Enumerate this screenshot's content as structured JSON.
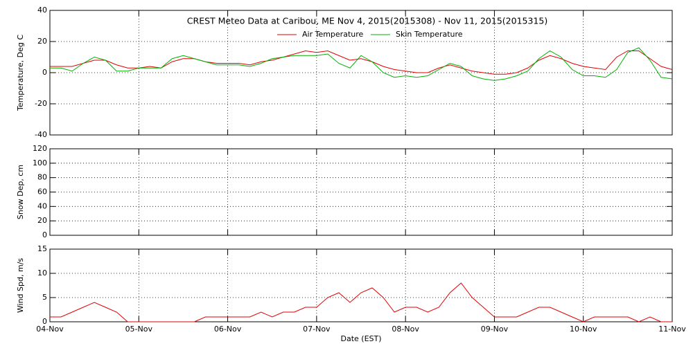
{
  "chart_data": [
    {
      "type": "line",
      "title": "CREST Meteo Data at Caribou, ME   Nov  4, 2015(2015308) - Nov 11, 2015(2015315)",
      "ylabel": "Temperature, Deg C",
      "xlim": [
        0,
        7
      ],
      "xticks": [
        0,
        1,
        2,
        3,
        4,
        5,
        6,
        7
      ],
      "ylim": [
        -40,
        40
      ],
      "yticks": [
        -40,
        -20,
        0,
        20,
        40
      ],
      "grid": true,
      "x": [
        0,
        0.125,
        0.25,
        0.375,
        0.5,
        0.625,
        0.75,
        0.875,
        1,
        1.125,
        1.25,
        1.375,
        1.5,
        1.625,
        1.75,
        1.875,
        2,
        2.125,
        2.25,
        2.375,
        2.5,
        2.625,
        2.75,
        2.875,
        3,
        3.125,
        3.25,
        3.375,
        3.5,
        3.625,
        3.75,
        3.875,
        4,
        4.125,
        4.25,
        4.375,
        4.5,
        4.625,
        4.75,
        4.875,
        5,
        5.125,
        5.25,
        5.375,
        5.5,
        5.625,
        5.75,
        5.875,
        6,
        6.125,
        6.25,
        6.375,
        6.5,
        6.625,
        6.75,
        6.875,
        7
      ],
      "series": [
        {
          "name": "Air Temperature",
          "color": "#e00000",
          "values": [
            4,
            4,
            4,
            6,
            8,
            8,
            5,
            3,
            3,
            4,
            3,
            7,
            9,
            9,
            7,
            6,
            6,
            6,
            5,
            7,
            8,
            10,
            12,
            14,
            13,
            14,
            11,
            8,
            9,
            7,
            4,
            2,
            1,
            0,
            0,
            3,
            5,
            3,
            1,
            0,
            -1,
            -1,
            0,
            3,
            8,
            11,
            9,
            6,
            4,
            3,
            2,
            10,
            14,
            14,
            9,
            4,
            2
          ]
        },
        {
          "name": "Skin Temperature",
          "color": "#00b000",
          "values": [
            3,
            3,
            1,
            6,
            10,
            8,
            1,
            1,
            3,
            3,
            3,
            9,
            11,
            9,
            7,
            5,
            5,
            5,
            4,
            6,
            9,
            10,
            11,
            11,
            11,
            12,
            6,
            3,
            11,
            7,
            0,
            -3,
            -2,
            -3,
            -2,
            2,
            6,
            4,
            -2,
            -4,
            -5,
            -4,
            -2,
            1,
            9,
            14,
            10,
            2,
            -2,
            -2,
            -3,
            2,
            13,
            16,
            8,
            -3,
            -4
          ]
        }
      ]
    },
    {
      "type": "line",
      "ylabel": "Snow Dep, cm",
      "xlim": [
        0,
        7
      ],
      "xticks": [
        0,
        1,
        2,
        3,
        4,
        5,
        6,
        7
      ],
      "ylim": [
        0,
        120
      ],
      "yticks": [
        0,
        20,
        40,
        60,
        80,
        100,
        120
      ],
      "grid": true,
      "series": []
    },
    {
      "type": "line",
      "ylabel": "Wind Spd, m/s",
      "xlabel": "Date (EST)",
      "xlim": [
        0,
        7
      ],
      "xticks": [
        {
          "value": 0,
          "label": "04-Nov"
        },
        {
          "value": 1,
          "label": "05-Nov"
        },
        {
          "value": 2,
          "label": "06-Nov"
        },
        {
          "value": 3,
          "label": "07-Nov"
        },
        {
          "value": 4,
          "label": "08-Nov"
        },
        {
          "value": 5,
          "label": "09-Nov"
        },
        {
          "value": 6,
          "label": "10-Nov"
        },
        {
          "value": 7,
          "label": "11-Nov"
        }
      ],
      "ylim": [
        0,
        15
      ],
      "yticks": [
        0,
        5,
        10,
        15
      ],
      "grid": true,
      "x": [
        0,
        0.125,
        0.25,
        0.375,
        0.5,
        0.625,
        0.75,
        0.875,
        1,
        1.125,
        1.25,
        1.375,
        1.5,
        1.625,
        1.75,
        1.875,
        2,
        2.125,
        2.25,
        2.375,
        2.5,
        2.625,
        2.75,
        2.875,
        3,
        3.125,
        3.25,
        3.375,
        3.5,
        3.625,
        3.75,
        3.875,
        4,
        4.125,
        4.25,
        4.375,
        4.5,
        4.625,
        4.75,
        4.875,
        5,
        5.125,
        5.25,
        5.375,
        5.5,
        5.625,
        5.75,
        5.875,
        6,
        6.125,
        6.25,
        6.375,
        6.5,
        6.625,
        6.75,
        6.875,
        7
      ],
      "series": [
        {
          "color": "#e00000",
          "values": [
            1,
            1,
            2,
            3,
            4,
            3,
            2,
            0,
            0,
            0,
            0,
            0,
            0,
            0,
            1,
            1,
            1,
            1,
            1,
            2,
            1,
            2,
            2,
            3,
            3,
            5,
            6,
            4,
            6,
            7,
            5,
            2,
            3,
            3,
            2,
            3,
            6,
            8,
            5,
            3,
            1,
            1,
            1,
            2,
            3,
            3,
            2,
            1,
            0,
            1,
            1,
            1,
            1,
            0,
            1,
            0,
            0
          ]
        }
      ]
    }
  ]
}
